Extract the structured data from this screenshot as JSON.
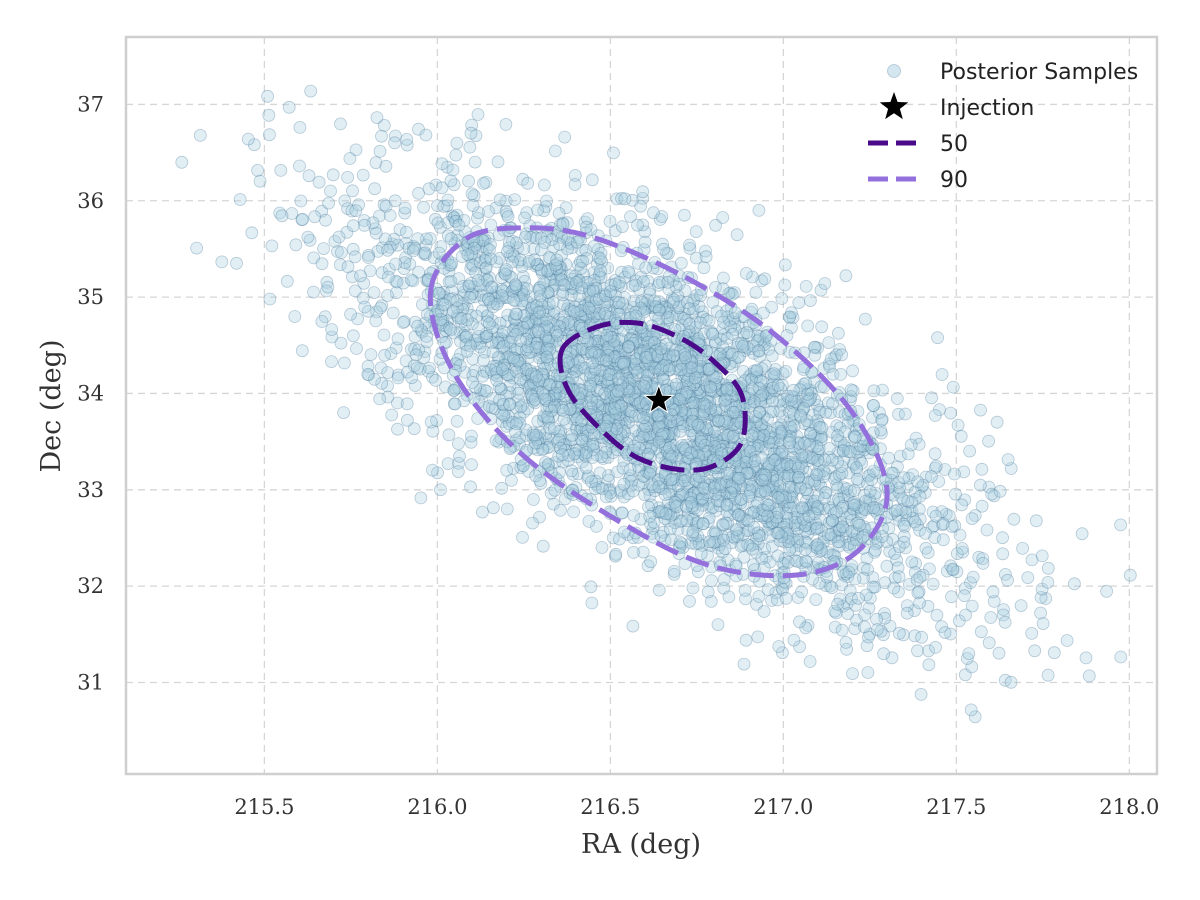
{
  "chart_data": {
    "type": "scatter",
    "title": "",
    "xlabel": "RA (deg)",
    "ylabel": "Dec (deg)",
    "xlim": [
      215.1,
      218.08
    ],
    "ylim": [
      30.05,
      37.7
    ],
    "xticks": [
      "215.5",
      "216.0",
      "216.5",
      "217.0",
      "217.5",
      "218.0"
    ],
    "xtick_values": [
      215.5,
      216.0,
      216.5,
      217.0,
      217.5,
      218.0
    ],
    "yticks": [
      "31",
      "32",
      "33",
      "34",
      "35",
      "36",
      "37"
    ],
    "ytick_values": [
      31,
      32,
      33,
      34,
      35,
      36,
      37
    ],
    "grid": true,
    "legend": {
      "position": "top-right",
      "entries": [
        "Posterior Samples",
        "Injection",
        "50",
        "90"
      ]
    },
    "posterior_samples": {
      "name": "Posterior Samples",
      "color": "#a9cde0",
      "edge_color": "#3f6f92",
      "approx_count": 4000,
      "center": [
        216.65,
        33.9
      ],
      "std_ra": 0.42,
      "std_dec": 1.05,
      "correlation": -0.7
    },
    "injection": {
      "name": "Injection",
      "ra": 216.64,
      "dec": 33.93,
      "color": "#000000"
    },
    "contours": [
      {
        "name": "50",
        "color": "#4b0a8a",
        "points": [
          [
            216.36,
            34.45
          ],
          [
            216.46,
            34.69
          ],
          [
            216.58,
            34.73
          ],
          [
            216.7,
            34.58
          ],
          [
            216.8,
            34.33
          ],
          [
            216.88,
            33.98
          ],
          [
            216.88,
            33.5
          ],
          [
            216.8,
            33.25
          ],
          [
            216.7,
            33.21
          ],
          [
            216.58,
            33.33
          ],
          [
            216.48,
            33.6
          ],
          [
            216.38,
            34.02
          ]
        ]
      },
      {
        "name": "90",
        "color": "#9370db",
        "points": [
          [
            215.98,
            35.05
          ],
          [
            216.08,
            35.6
          ],
          [
            216.25,
            35.72
          ],
          [
            216.45,
            35.62
          ],
          [
            216.72,
            35.2
          ],
          [
            216.98,
            34.6
          ],
          [
            217.2,
            33.8
          ],
          [
            217.3,
            32.98
          ],
          [
            217.22,
            32.38
          ],
          [
            217.05,
            32.12
          ],
          [
            216.8,
            32.2
          ],
          [
            216.55,
            32.62
          ],
          [
            216.25,
            33.35
          ],
          [
            216.05,
            34.2
          ]
        ]
      }
    ]
  }
}
